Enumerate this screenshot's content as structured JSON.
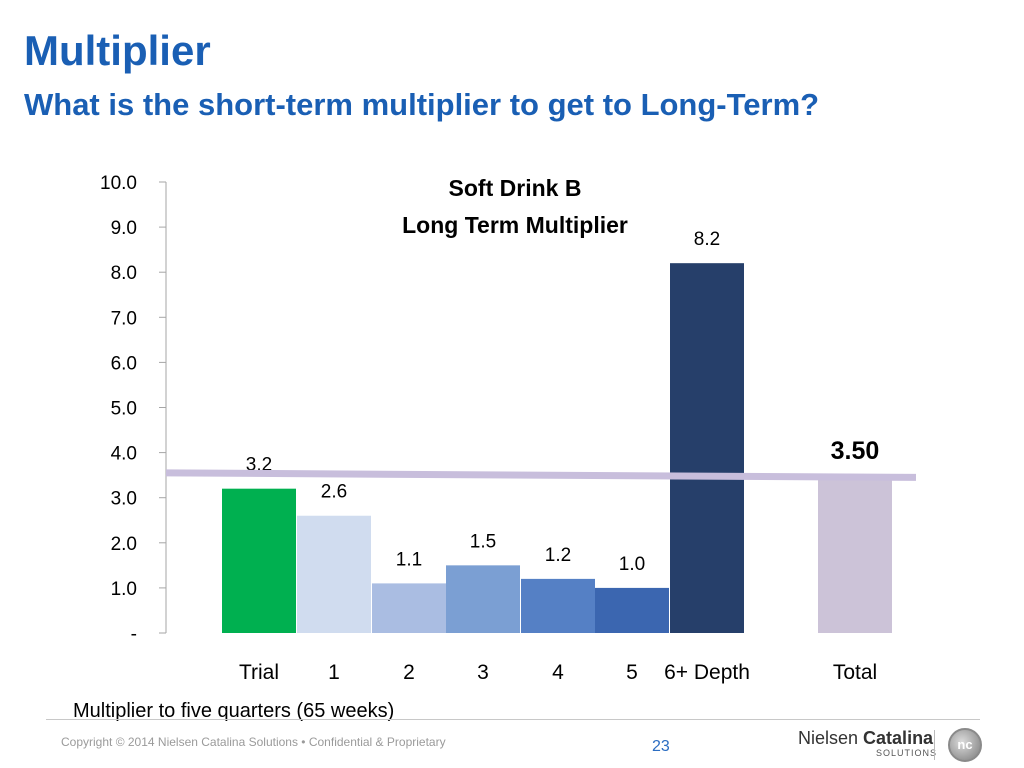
{
  "header": {
    "title": "Multiplier",
    "subtitle": "What is the short-term multiplier to get to Long-Term?"
  },
  "chart_data": {
    "type": "bar",
    "title": "Soft Drink B",
    "subtitle": "Long Term Multiplier",
    "categories": [
      "Trial",
      "1",
      "2",
      "3",
      "4",
      "5",
      "6+ Depth",
      "Total"
    ],
    "values": [
      3.2,
      2.6,
      1.1,
      1.5,
      1.2,
      1.0,
      8.2,
      3.5
    ],
    "data_labels": [
      "3.2",
      "2.6",
      "1.1",
      "1.5",
      "1.2",
      "1.0",
      "8.2",
      "3.50"
    ],
    "bar_colors": [
      "#00b050",
      "#d0dcef",
      "#aabde2",
      "#7b9fd3",
      "#5580c5",
      "#3b66b0",
      "#263f6a",
      "#ccc3d8"
    ],
    "ylim": [
      0,
      10
    ],
    "yticks": [
      0,
      1,
      2,
      3,
      4,
      5,
      6,
      7,
      8,
      9,
      10
    ],
    "ytick_labels": [
      "-",
      "1.0",
      "2.0",
      "3.0",
      "4.0",
      "5.0",
      "6.0",
      "7.0",
      "8.0",
      "9.0",
      "10.0"
    ],
    "reference_line": {
      "start": 3.55,
      "end": 3.45,
      "color": "#c8bedc"
    },
    "grid": false,
    "xlabel": "",
    "ylabel": ""
  },
  "footnote": "Multiplier to five quarters (65 weeks)",
  "footer": {
    "copyright": "Copyright  ©  2014 Nielsen Catalina Solutions  •  Confidential & Proprietary",
    "page_number": "23",
    "logo_brand_1": "Nielsen",
    "logo_brand_2": "Catalina",
    "logo_sub": "SOLUTIONS",
    "logo_mark": "nc"
  }
}
